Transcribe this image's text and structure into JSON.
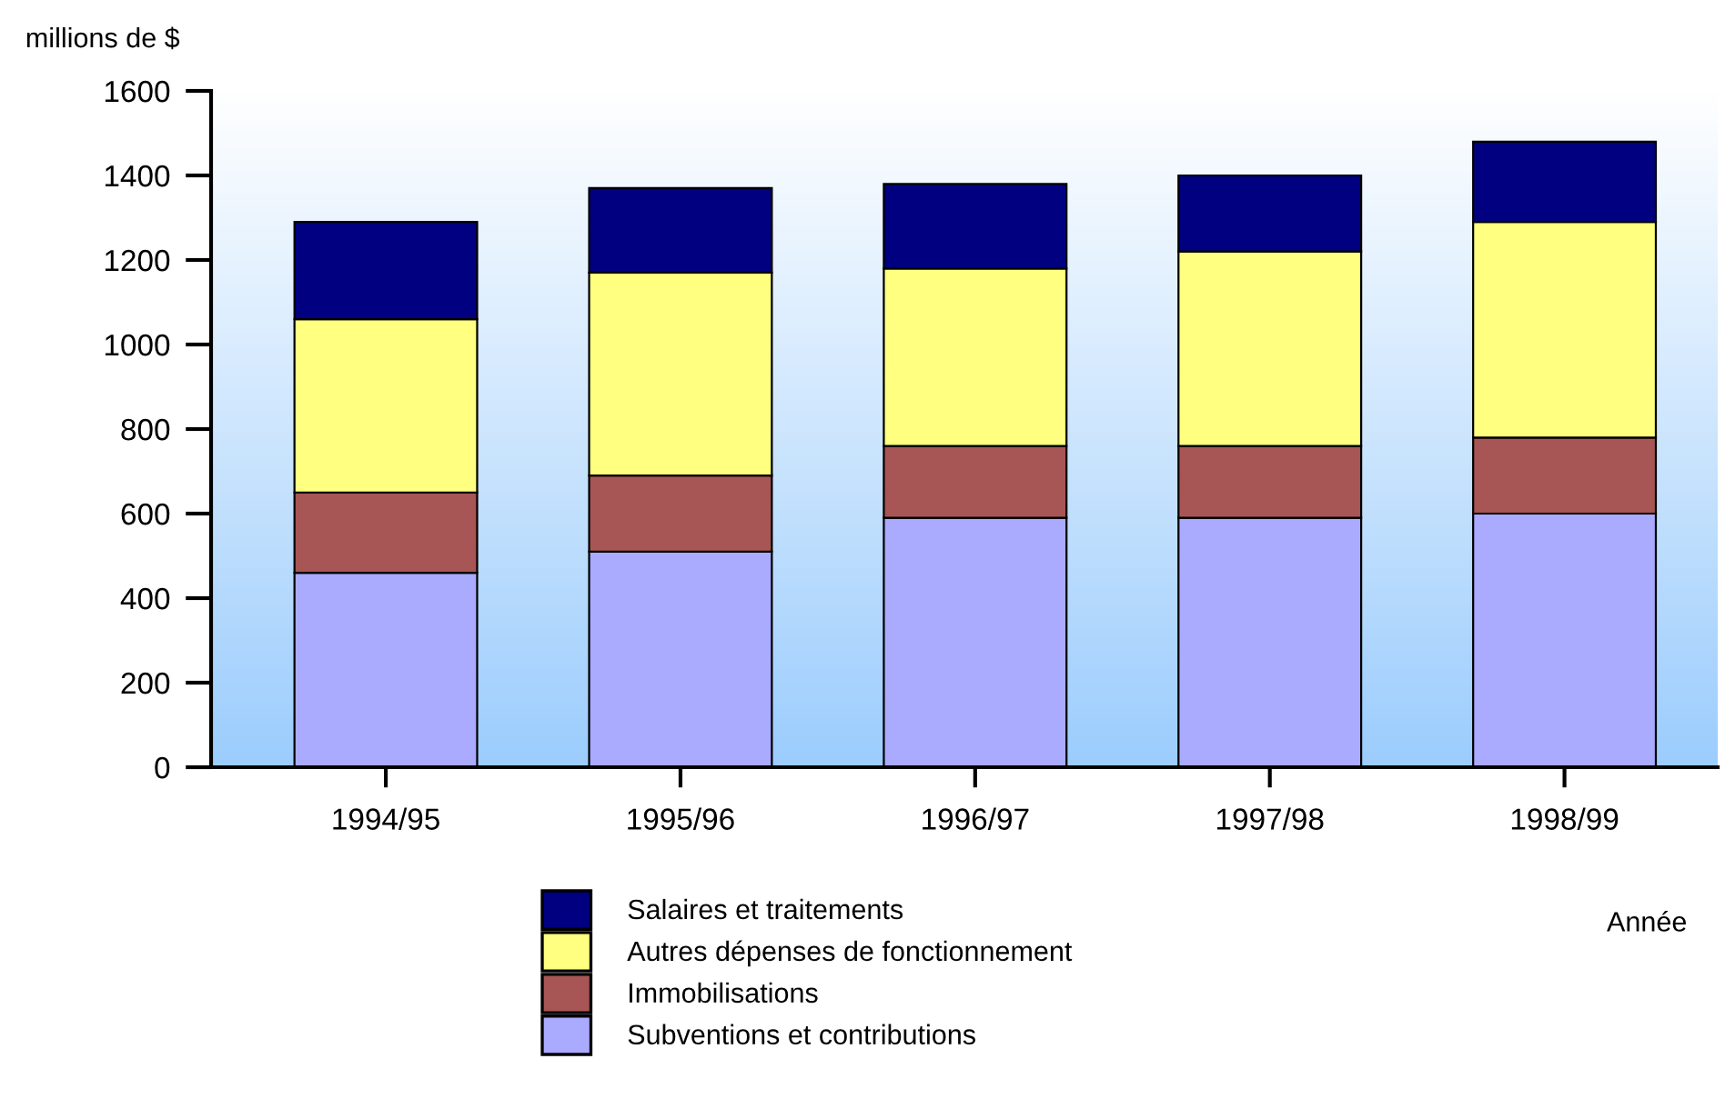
{
  "chart_data": {
    "type": "bar",
    "stacked": true,
    "categories": [
      "1994/95",
      "1995/96",
      "1996/97",
      "1997/98",
      "1998/99"
    ],
    "series": [
      {
        "name": "Subventions et contributions",
        "color": "#aaaaff",
        "values": [
          460,
          510,
          590,
          590,
          600
        ]
      },
      {
        "name": "Immobilisations",
        "color": "#a85555",
        "values": [
          190,
          180,
          170,
          170,
          180
        ]
      },
      {
        "name": "Autres dépenses de fonctionnement",
        "color": "#ffff80",
        "values": [
          410,
          480,
          420,
          460,
          510
        ]
      },
      {
        "name": "Salaires et traitements",
        "color": "#000080",
        "values": [
          230,
          200,
          200,
          180,
          190
        ]
      }
    ],
    "xlabel": "Année",
    "ylabel": "millions de $",
    "ylim": [
      0,
      1600
    ],
    "yticks": [
      0,
      200,
      400,
      600,
      800,
      1000,
      1200,
      1400,
      1600
    ],
    "legend": "bottom"
  }
}
